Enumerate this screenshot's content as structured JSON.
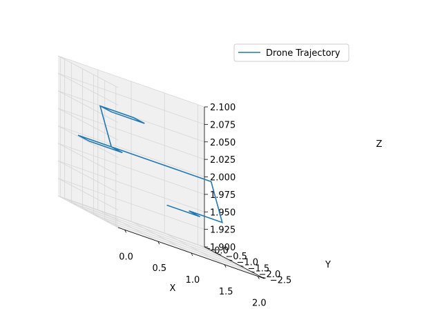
{
  "chart_data": {
    "type": "line",
    "projection": "3d",
    "title": "",
    "xlabel": "X",
    "ylabel": "Y",
    "zlabel": "Z",
    "xlim": [
      -0.1,
      2.1
    ],
    "ylim": [
      -2.6,
      0.1
    ],
    "zlim": [
      1.9,
      2.1
    ],
    "grid": true,
    "legend_placement": "top-right",
    "x_ticks": [
      0.0,
      0.5,
      1.0,
      1.5,
      2.0
    ],
    "x_tick_labels": [
      "0.0",
      "0.5",
      "1.0",
      "1.5",
      "2.0"
    ],
    "y_ticks": [
      0.0,
      -0.5,
      -1.0,
      -1.5,
      -2.0,
      -2.5
    ],
    "y_tick_labels": [
      "0.0",
      "−0.5",
      "−1.0",
      "−1.5",
      "−2.0",
      "−2.5"
    ],
    "z_ticks": [
      1.9,
      1.925,
      1.95,
      1.975,
      2.0,
      2.025,
      2.05,
      2.075,
      2.1
    ],
    "z_tick_labels": [
      "1.900",
      "1.925",
      "1.950",
      "1.975",
      "2.000",
      "2.025",
      "2.050",
      "2.075",
      "2.100"
    ],
    "series": [
      {
        "name": "Drone Trajectory",
        "color": "#1f77b4",
        "x": [
          1.0,
          1.5,
          1.5,
          2.0,
          2.0,
          1.5,
          1.0,
          0.5,
          0.5,
          0.0,
          0.0,
          0.5,
          0.5,
          1.0,
          1.0,
          0.5,
          0.5
        ],
        "y": [
          -1.5,
          -1.5,
          -1.0,
          -1.0,
          -0.5,
          -0.5,
          -0.5,
          -0.5,
          -1.0,
          -1.0,
          -0.5,
          -0.5,
          0.0,
          0.0,
          -0.5,
          -0.5,
          0.0
        ],
        "z": [
          1.95,
          1.95,
          1.95,
          1.95,
          2.0,
          2.0,
          2.0,
          2.0,
          2.0,
          2.0,
          2.0,
          2.0,
          2.05,
          2.05,
          2.05,
          2.05,
          2.05
        ]
      }
    ]
  }
}
